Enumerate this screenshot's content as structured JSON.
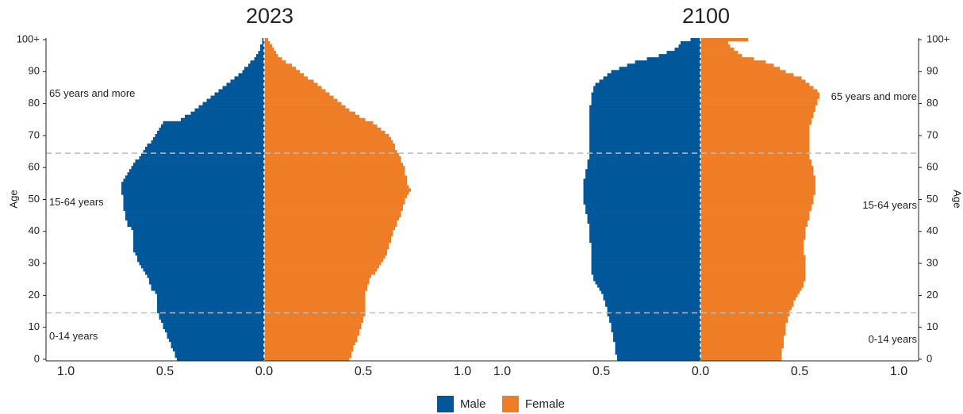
{
  "chart_data": [
    {
      "type": "pyramid",
      "title": "2023",
      "ylabel": "Age",
      "y": [
        0,
        1,
        2,
        3,
        4,
        5,
        6,
        7,
        8,
        9,
        10,
        11,
        12,
        13,
        14,
        15,
        16,
        17,
        18,
        19,
        20,
        21,
        22,
        23,
        24,
        25,
        26,
        27,
        28,
        29,
        30,
        31,
        32,
        33,
        34,
        35,
        36,
        37,
        38,
        39,
        40,
        41,
        42,
        43,
        44,
        45,
        46,
        47,
        48,
        49,
        50,
        51,
        52,
        53,
        54,
        55,
        56,
        57,
        58,
        59,
        60,
        61,
        62,
        63,
        64,
        65,
        66,
        67,
        68,
        69,
        70,
        71,
        72,
        73,
        74,
        75,
        76,
        77,
        78,
        79,
        80,
        81,
        82,
        83,
        84,
        85,
        86,
        87,
        88,
        89,
        90,
        91,
        92,
        93,
        94,
        95,
        96,
        97,
        98,
        99,
        100
      ],
      "series": [
        {
          "values": [
            0.44,
            0.45,
            0.45,
            0.46,
            0.47,
            0.47,
            0.48,
            0.49,
            0.49,
            0.5,
            0.51,
            0.51,
            0.52,
            0.53,
            0.53,
            0.54,
            0.54,
            0.54,
            0.54,
            0.54,
            0.54,
            0.55,
            0.57,
            0.57,
            0.58,
            0.58,
            0.59,
            0.6,
            0.61,
            0.62,
            0.63,
            0.64,
            0.64,
            0.65,
            0.66,
            0.66,
            0.66,
            0.66,
            0.66,
            0.66,
            0.66,
            0.67,
            0.69,
            0.69,
            0.7,
            0.7,
            0.7,
            0.71,
            0.71,
            0.71,
            0.71,
            0.71,
            0.72,
            0.72,
            0.72,
            0.72,
            0.71,
            0.7,
            0.69,
            0.68,
            0.67,
            0.66,
            0.65,
            0.63,
            0.62,
            0.61,
            0.6,
            0.59,
            0.57,
            0.56,
            0.55,
            0.54,
            0.53,
            0.52,
            0.51,
            0.42,
            0.4,
            0.37,
            0.35,
            0.33,
            0.31,
            0.29,
            0.27,
            0.25,
            0.23,
            0.21,
            0.19,
            0.17,
            0.15,
            0.13,
            0.11,
            0.1,
            0.08,
            0.07,
            0.05,
            0.04,
            0.03,
            0.02,
            0.02,
            0.01,
            0.01
          ]
        },
        {
          "values": [
            0.43,
            0.44,
            0.44,
            0.45,
            0.45,
            0.46,
            0.47,
            0.47,
            0.48,
            0.48,
            0.49,
            0.49,
            0.5,
            0.5,
            0.51,
            0.51,
            0.51,
            0.51,
            0.51,
            0.51,
            0.51,
            0.51,
            0.52,
            0.52,
            0.53,
            0.53,
            0.54,
            0.56,
            0.57,
            0.58,
            0.59,
            0.6,
            0.61,
            0.62,
            0.62,
            0.63,
            0.63,
            0.64,
            0.64,
            0.65,
            0.65,
            0.66,
            0.67,
            0.67,
            0.68,
            0.69,
            0.69,
            0.7,
            0.7,
            0.71,
            0.71,
            0.72,
            0.73,
            0.74,
            0.73,
            0.72,
            0.72,
            0.72,
            0.71,
            0.71,
            0.71,
            0.7,
            0.69,
            0.69,
            0.68,
            0.67,
            0.66,
            0.66,
            0.65,
            0.64,
            0.63,
            0.61,
            0.59,
            0.57,
            0.55,
            0.51,
            0.48,
            0.46,
            0.43,
            0.41,
            0.39,
            0.37,
            0.35,
            0.33,
            0.31,
            0.29,
            0.27,
            0.25,
            0.22,
            0.2,
            0.18,
            0.16,
            0.14,
            0.11,
            0.09,
            0.07,
            0.06,
            0.05,
            0.04,
            0.03,
            0.02
          ]
        }
      ],
      "xlim": [
        -1.1,
        1.1
      ],
      "xticks": [
        {
          "value": -1,
          "label": "1.0"
        },
        {
          "value": -0.5,
          "label": "0.5"
        },
        {
          "value": 0,
          "label": "0.0"
        },
        {
          "value": 0.5,
          "label": "0.5"
        },
        {
          "value": 1,
          "label": "1.0"
        }
      ],
      "ylim": [
        -0.5,
        100.5
      ],
      "yticks": [
        0,
        10,
        20,
        30,
        40,
        50,
        60,
        70,
        80,
        90,
        {
          "value": 100,
          "label": "100+"
        }
      ],
      "y_axis_side": "left",
      "dividers": [
        14.5,
        64.5
      ],
      "annotations": [
        "65 years and more",
        "15-64 years",
        "0-14 years"
      ]
    },
    {
      "type": "pyramid",
      "title": "2100",
      "ylabel": "Age",
      "y": [
        0,
        1,
        2,
        3,
        4,
        5,
        6,
        7,
        8,
        9,
        10,
        11,
        12,
        13,
        14,
        15,
        16,
        17,
        18,
        19,
        20,
        21,
        22,
        23,
        24,
        25,
        26,
        27,
        28,
        29,
        30,
        31,
        32,
        33,
        34,
        35,
        36,
        37,
        38,
        39,
        40,
        41,
        42,
        43,
        44,
        45,
        46,
        47,
        48,
        49,
        50,
        51,
        52,
        53,
        54,
        55,
        56,
        57,
        58,
        59,
        60,
        61,
        62,
        63,
        64,
        65,
        66,
        67,
        68,
        69,
        70,
        71,
        72,
        73,
        74,
        75,
        76,
        77,
        78,
        79,
        80,
        81,
        82,
        83,
        84,
        85,
        86,
        87,
        88,
        89,
        90,
        91,
        92,
        93,
        94,
        95,
        96,
        97,
        98,
        99,
        100
      ],
      "series": [
        {
          "values": [
            0.42,
            0.42,
            0.43,
            0.43,
            0.43,
            0.43,
            0.44,
            0.44,
            0.44,
            0.45,
            0.45,
            0.45,
            0.46,
            0.46,
            0.47,
            0.47,
            0.47,
            0.48,
            0.48,
            0.49,
            0.49,
            0.5,
            0.51,
            0.52,
            0.53,
            0.54,
            0.54,
            0.55,
            0.55,
            0.55,
            0.55,
            0.55,
            0.55,
            0.55,
            0.55,
            0.55,
            0.55,
            0.56,
            0.56,
            0.56,
            0.56,
            0.56,
            0.56,
            0.57,
            0.57,
            0.57,
            0.58,
            0.58,
            0.58,
            0.59,
            0.59,
            0.59,
            0.59,
            0.59,
            0.59,
            0.59,
            0.59,
            0.58,
            0.58,
            0.58,
            0.57,
            0.57,
            0.57,
            0.56,
            0.56,
            0.56,
            0.56,
            0.56,
            0.56,
            0.56,
            0.56,
            0.56,
            0.56,
            0.56,
            0.56,
            0.56,
            0.56,
            0.56,
            0.56,
            0.56,
            0.55,
            0.55,
            0.55,
            0.55,
            0.54,
            0.54,
            0.53,
            0.51,
            0.49,
            0.47,
            0.45,
            0.41,
            0.37,
            0.33,
            0.27,
            0.21,
            0.17,
            0.13,
            0.11,
            0.1,
            0.05
          ]
        },
        {
          "values": [
            0.41,
            0.41,
            0.41,
            0.41,
            0.42,
            0.42,
            0.42,
            0.42,
            0.43,
            0.43,
            0.43,
            0.43,
            0.44,
            0.44,
            0.45,
            0.45,
            0.46,
            0.47,
            0.47,
            0.48,
            0.49,
            0.5,
            0.51,
            0.52,
            0.52,
            0.53,
            0.53,
            0.53,
            0.53,
            0.53,
            0.53,
            0.53,
            0.53,
            0.52,
            0.52,
            0.52,
            0.52,
            0.52,
            0.53,
            0.53,
            0.53,
            0.53,
            0.54,
            0.54,
            0.55,
            0.55,
            0.55,
            0.56,
            0.56,
            0.57,
            0.57,
            0.57,
            0.58,
            0.58,
            0.58,
            0.58,
            0.58,
            0.58,
            0.57,
            0.57,
            0.57,
            0.56,
            0.56,
            0.55,
            0.55,
            0.55,
            0.55,
            0.55,
            0.55,
            0.55,
            0.55,
            0.55,
            0.55,
            0.55,
            0.56,
            0.56,
            0.57,
            0.57,
            0.58,
            0.58,
            0.59,
            0.59,
            0.6,
            0.6,
            0.59,
            0.57,
            0.55,
            0.53,
            0.51,
            0.47,
            0.43,
            0.4,
            0.37,
            0.33,
            0.27,
            0.21,
            0.19,
            0.17,
            0.15,
            0.14,
            0.24
          ]
        }
      ],
      "xlim": [
        -1.1,
        1.1
      ],
      "xticks": [
        {
          "value": -1,
          "label": "1.0"
        },
        {
          "value": -0.5,
          "label": "0.5"
        },
        {
          "value": 0,
          "label": "0.0"
        },
        {
          "value": 0.5,
          "label": "0.5"
        },
        {
          "value": 1,
          "label": "1.0"
        }
      ],
      "ylim": [
        -0.5,
        100.5
      ],
      "yticks": [
        0,
        10,
        20,
        30,
        40,
        50,
        60,
        70,
        80,
        90,
        {
          "value": 100,
          "label": "100+"
        }
      ],
      "y_axis_side": "right",
      "dividers": [
        14.5,
        64.5
      ],
      "annotations": [
        "65 years and more",
        "15-64 years",
        "0-14 years"
      ]
    }
  ],
  "legend": [
    {
      "name": "Male",
      "color": "#00589a"
    },
    {
      "name": "Female",
      "color": "#ef7d26"
    }
  ]
}
